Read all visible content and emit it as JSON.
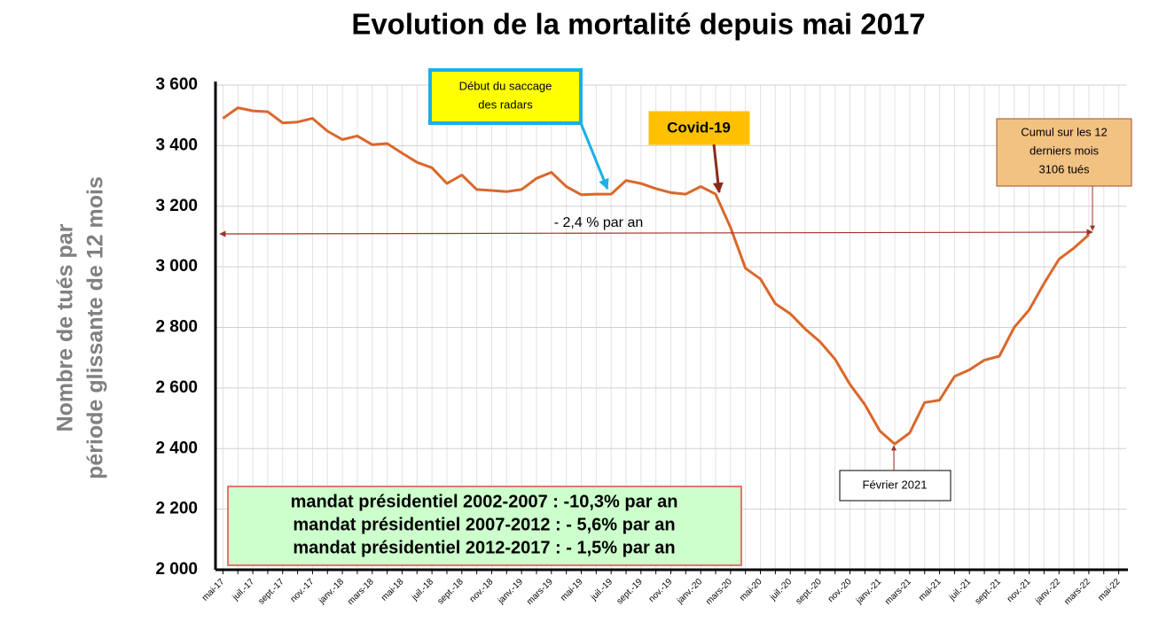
{
  "chart_data": {
    "type": "line",
    "title": "Evolution de la mortalité depuis mai 2017",
    "ylabel": [
      "Nombre de tués par",
      "période  glissante de 12 mois"
    ],
    "categories": [
      "mai-17",
      null,
      "juil.-17",
      null,
      "sept.-17",
      null,
      "nov.-17",
      null,
      "janv.-18",
      null,
      "mars-18",
      null,
      "mai-18",
      null,
      "juil.-18",
      null,
      "sept.-18",
      null,
      "nov.-18",
      null,
      "janv.-19",
      null,
      "mars-19",
      null,
      "mai-19",
      null,
      "juil.-19",
      null,
      "sept.-19",
      null,
      "nov.-19",
      null,
      "janv.-20",
      null,
      "mars-20",
      null,
      "mai-20",
      null,
      "juil.-20",
      null,
      "sept.-20",
      null,
      "nov.-20",
      null,
      "janv.-21",
      null,
      "mars-21",
      null,
      "mai-21",
      null,
      "juil.-21",
      null,
      "sept.-21",
      null,
      "nov.-21",
      null,
      "janv.-22",
      null,
      "mars-22",
      null,
      "mai-22"
    ],
    "series": [
      {
        "name": "Nombre de tués",
        "color": "#d9682b",
        "values": [
          3490,
          3525,
          3515,
          3512,
          3475,
          3478,
          3490,
          3448,
          3420,
          3432,
          3403,
          3407,
          3375,
          3345,
          3327,
          3275,
          3303,
          3255,
          3252,
          3248,
          3255,
          3292,
          3312,
          3265,
          3238,
          3240,
          3240,
          3285,
          3275,
          3258,
          3245,
          3240,
          3265,
          3240,
          3130,
          2995,
          2960,
          2878,
          2845,
          2795,
          2752,
          2695,
          2612,
          2545,
          2458,
          2415,
          2452,
          2552,
          2560,
          2638,
          2660,
          2692,
          2705,
          2800,
          2858,
          2945,
          3025,
          3062,
          3106,
          null,
          null
        ]
      }
    ],
    "ylim": [
      2000,
      3600
    ],
    "yticks": [
      {
        "value": 2000,
        "label": "2 000"
      },
      {
        "value": 2200,
        "label": "2 200"
      },
      {
        "value": 2400,
        "label": "2 400"
      },
      {
        "value": 2600,
        "label": "2 600"
      },
      {
        "value": 2800,
        "label": "2 800"
      },
      {
        "value": 3000,
        "label": "3 000"
      },
      {
        "value": 3200,
        "label": "3 200"
      },
      {
        "value": 3400,
        "label": "3 400"
      },
      {
        "value": 3600,
        "label": "3 600"
      }
    ],
    "grid": true,
    "annotations": [
      {
        "lines": [
          "Début du saccage",
          "des radars"
        ]
      },
      {
        "lines": [
          "Covid-19"
        ]
      },
      {
        "lines": [
          "Cumul sur les 12",
          "derniers mois",
          "3106 tués"
        ]
      },
      {
        "lines": [
          "Février 2021"
        ]
      },
      {
        "lines": [
          "- 2,4 % par an"
        ]
      },
      {
        "lines": [
          "mandat présidentiel 2002-2007 : -10,3% par an",
          "mandat présidentiel 2007-2012 : - 5,6% par an",
          "mandat présidentiel 2012-2017 : - 1,5% par an"
        ]
      }
    ]
  }
}
